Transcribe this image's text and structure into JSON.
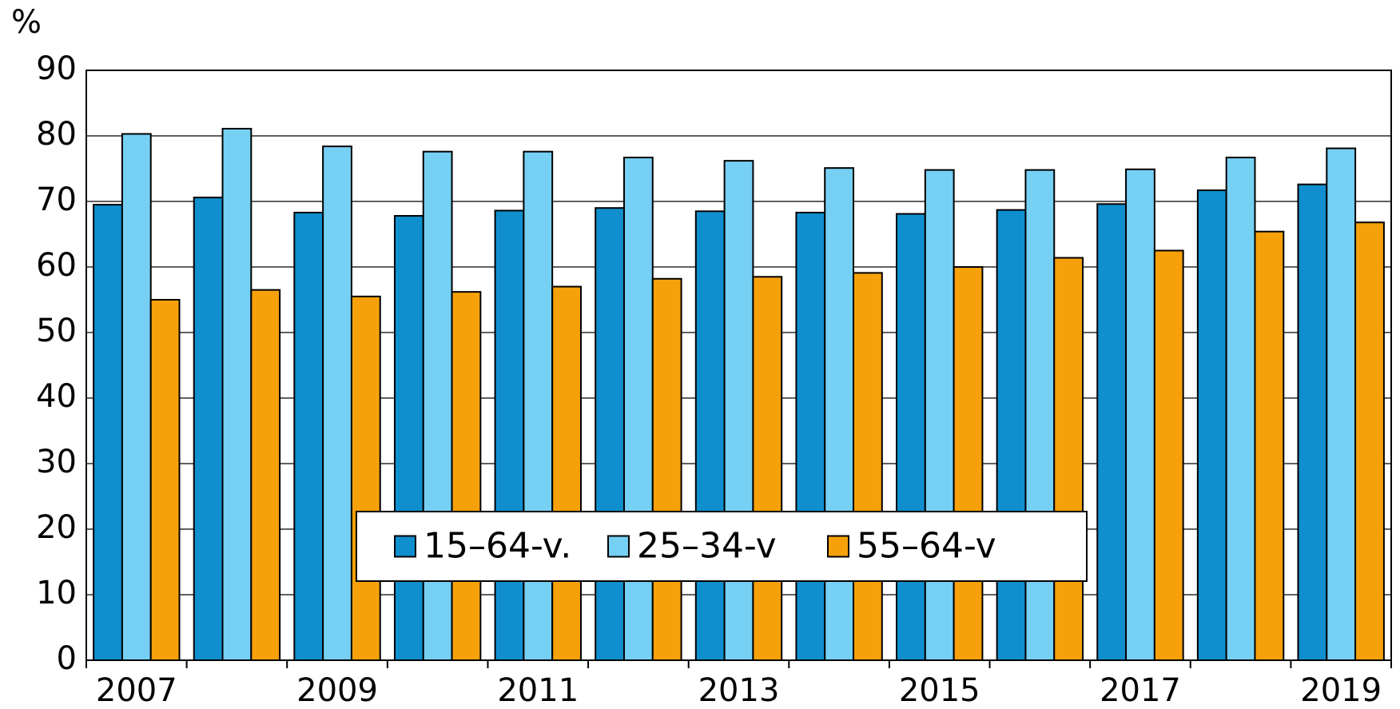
{
  "chart_data": {
    "type": "bar",
    "y_label": "%",
    "categories": [
      "2007",
      null,
      "2009",
      null,
      "2011",
      null,
      "2013",
      null,
      "2015",
      null,
      "2017",
      null,
      "2019"
    ],
    "series": [
      {
        "name": "15–64-v.",
        "color": "#0f8fce",
        "values": [
          69.5,
          70.6,
          68.3,
          67.8,
          68.6,
          69.0,
          68.5,
          68.3,
          68.1,
          68.7,
          69.6,
          71.7,
          72.6
        ]
      },
      {
        "name": "25–34-v",
        "color": "#76d0f3",
        "values": [
          80.3,
          81.1,
          78.4,
          77.6,
          77.6,
          76.7,
          76.2,
          75.1,
          74.8,
          74.8,
          74.9,
          76.7,
          78.1
        ]
      },
      {
        "name": "55–64-v",
        "color": "#f7a10a",
        "values": [
          55.0,
          56.5,
          55.5,
          56.2,
          57.0,
          58.2,
          58.5,
          59.1,
          60.0,
          61.4,
          62.5,
          65.4,
          66.8
        ]
      }
    ],
    "ylim": [
      0,
      90
    ],
    "yticks": [
      0,
      10,
      20,
      30,
      40,
      50,
      60,
      70,
      80,
      90
    ],
    "grid": true
  }
}
